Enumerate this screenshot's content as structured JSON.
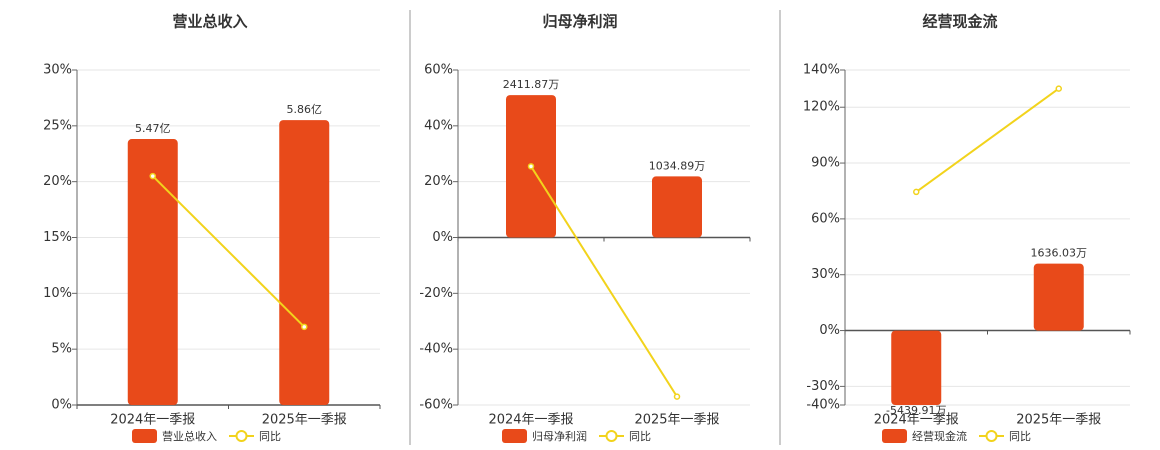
{
  "chart_data": [
    {
      "type": "bar",
      "title": "营业总收入",
      "categories": [
        "2024年一季报",
        "2025年一季报"
      ],
      "series": [
        {
          "name": "营业总收入",
          "color": "#e84a1a",
          "values": [
            5.47,
            5.86
          ],
          "value_labels": [
            "5.47亿",
            "5.86亿"
          ],
          "axis": "y2"
        },
        {
          "name": "同比",
          "color": "#f2d31c",
          "values": [
            20.5,
            7.0
          ]
        }
      ],
      "ylim": [
        0,
        30
      ],
      "yticks": [
        {
          "value": 0,
          "label": "0%"
        },
        {
          "value": 5,
          "label": "5%"
        },
        {
          "value": 10,
          "label": "10%"
        },
        {
          "value": 15,
          "label": "15%"
        },
        {
          "value": 20,
          "label": "20%"
        },
        {
          "value": 25,
          "label": "25%"
        },
        {
          "value": 30,
          "label": "30%"
        }
      ],
      "y2lim": [
        0,
        6.89
      ],
      "grid": true
    },
    {
      "type": "bar",
      "title": "归母净利润",
      "categories": [
        "2024年一季报",
        "2025年一季报"
      ],
      "series": [
        {
          "name": "归母净利润",
          "color": "#e84a1a",
          "values": [
            2411.87,
            1034.89
          ],
          "value_labels": [
            "2411.87万",
            "1034.89万"
          ],
          "axis": "y2"
        },
        {
          "name": "同比",
          "color": "#f2d31c",
          "values": [
            25.5,
            -57
          ]
        }
      ],
      "ylim": [
        -60,
        60
      ],
      "yticks": [
        {
          "value": -60,
          "label": "-60%"
        },
        {
          "value": -40,
          "label": "-40%"
        },
        {
          "value": -20,
          "label": "-20%"
        },
        {
          "value": 0,
          "label": "0%"
        },
        {
          "value": 20,
          "label": "20%"
        },
        {
          "value": 40,
          "label": "40%"
        },
        {
          "value": 60,
          "label": "60%"
        }
      ],
      "y2lim": [
        -2837,
        2837
      ],
      "grid": true
    },
    {
      "type": "bar",
      "title": "经营现金流",
      "categories": [
        "2024年一季报",
        "2025年一季报"
      ],
      "series": [
        {
          "name": "经营现金流",
          "color": "#e84a1a",
          "values": [
            -5439.91,
            1636.03
          ],
          "value_labels": [
            "-5439.91万",
            "1636.03万"
          ],
          "axis": "y2"
        },
        {
          "name": "同比",
          "color": "#f2d31c",
          "values": [
            74.5,
            130
          ]
        }
      ],
      "ylim": [
        -40,
        140
      ],
      "yticks": [
        {
          "value": -40,
          "label": "-40%"
        },
        {
          "value": -30,
          "label": "-30%"
        },
        {
          "value": 0,
          "label": "0%"
        },
        {
          "value": 30,
          "label": "30%"
        },
        {
          "value": 60,
          "label": "60%"
        },
        {
          "value": 90,
          "label": "90%"
        },
        {
          "value": 120,
          "label": "120%"
        },
        {
          "value": 140,
          "label": "140%"
        }
      ],
      "y2lim": [
        -1817,
        6362
      ],
      "grid": true
    }
  ]
}
